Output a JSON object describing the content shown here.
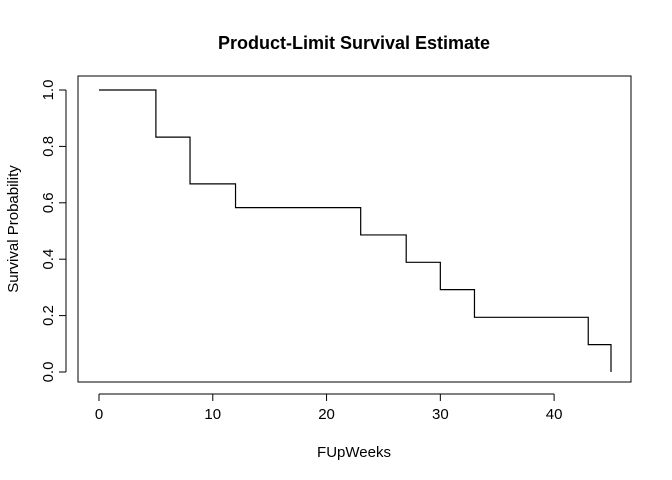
{
  "chart_data": {
    "type": "line",
    "step": true,
    "title": "Product-Limit Survival Estimate",
    "xlabel": "FUpWeeks",
    "ylabel": "Survival Probability",
    "xlim": [
      0,
      45
    ],
    "ylim": [
      0,
      1
    ],
    "x_ticks": [
      0,
      10,
      20,
      30,
      40
    ],
    "x_tick_labels": [
      "0",
      "10",
      "20",
      "30",
      "40"
    ],
    "y_ticks": [
      0,
      0.2,
      0.4,
      0.6,
      0.8,
      1.0
    ],
    "y_tick_labels": [
      "0.0",
      "0.2",
      "0.4",
      "0.6",
      "0.8",
      "1.0"
    ],
    "grid": false,
    "series": [
      {
        "color": "#000000",
        "x": [
          0,
          5,
          8,
          12,
          23,
          27,
          30,
          33,
          43,
          45
        ],
        "y": [
          1.0,
          0.833,
          0.667,
          0.583,
          0.486,
          0.389,
          0.292,
          0.194,
          0.097,
          0.0
        ]
      }
    ]
  }
}
